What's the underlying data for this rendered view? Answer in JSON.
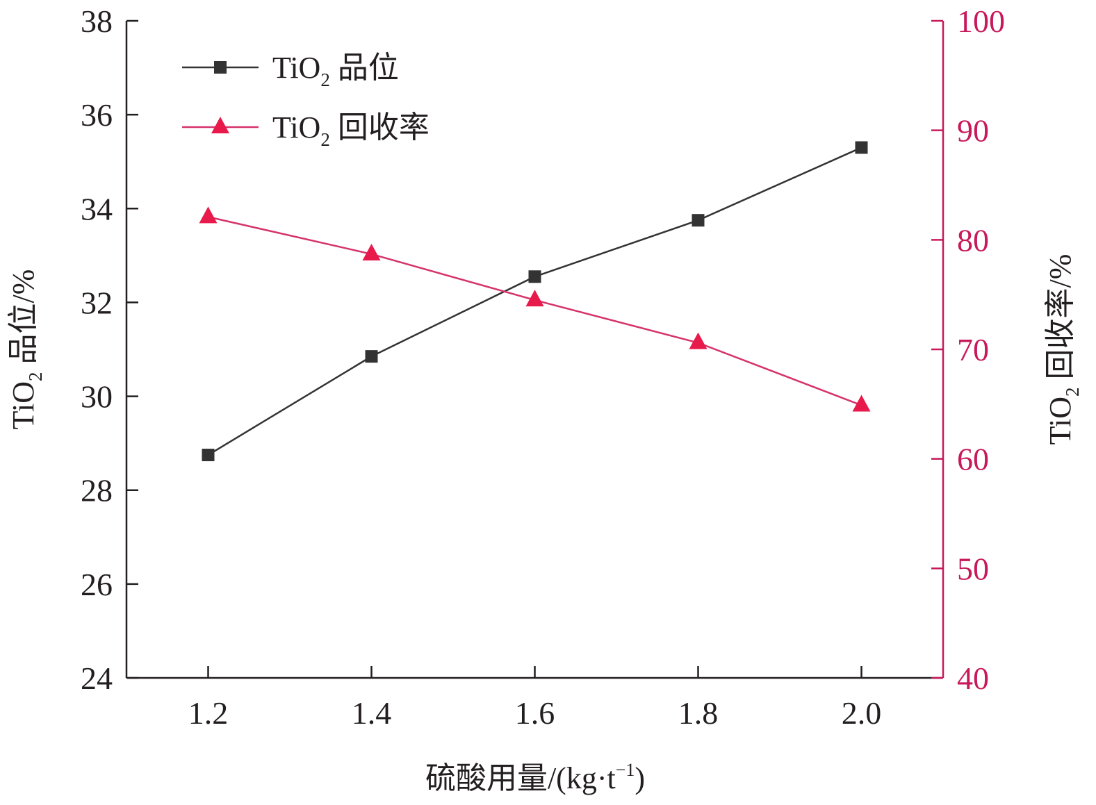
{
  "chart_data": {
    "type": "line",
    "x": [
      1.2,
      1.4,
      1.6,
      1.8,
      2.0
    ],
    "xlim": [
      1.1,
      2.1
    ],
    "x_ticks": [
      "1.2",
      "1.4",
      "1.6",
      "1.8",
      "2.0"
    ],
    "xlabel": {
      "main": "硫酸用量/(kg·t",
      "sup": "−1",
      "close": ")"
    },
    "y_left": {
      "label": {
        "pre": "TiO",
        "sub": "2",
        "post": " 品位/%"
      },
      "ylim": [
        24,
        38
      ],
      "ticks": [
        "24",
        "26",
        "28",
        "30",
        "32",
        "34",
        "36",
        "38"
      ],
      "color": "#231f20"
    },
    "y_right": {
      "label": {
        "pre": "TiO",
        "sub": "2",
        "post": " 回收率/%"
      },
      "ylim": [
        40,
        100
      ],
      "ticks": [
        "40",
        "50",
        "60",
        "70",
        "80",
        "90",
        "100"
      ],
      "color": "#c8195a"
    },
    "series": [
      {
        "name": {
          "pre": "TiO",
          "sub": "2",
          "post": " 品位"
        },
        "axis": "left",
        "marker": "square",
        "color": "#333333",
        "values": [
          28.75,
          30.85,
          32.55,
          33.75,
          35.3
        ]
      },
      {
        "name": {
          "pre": "TiO",
          "sub": "2",
          "post": " 回收率"
        },
        "axis": "right",
        "marker": "triangle",
        "color": "#e8194b",
        "line_color": "#d6336c",
        "values": [
          82.1,
          78.7,
          74.5,
          70.6,
          64.9
        ]
      }
    ],
    "legend": "top-left",
    "grid": false
  }
}
